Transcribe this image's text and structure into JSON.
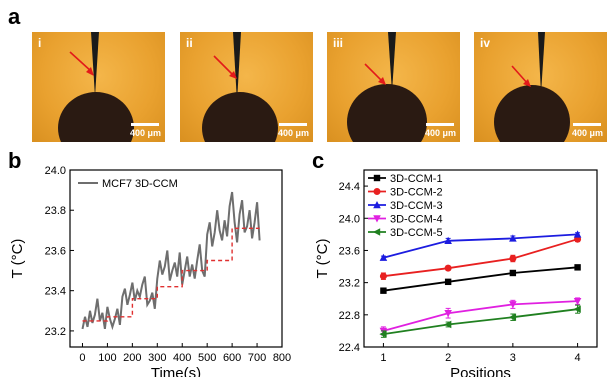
{
  "panel_a": {
    "letter": "a",
    "images": [
      {
        "label": "i",
        "scale": "400 μm"
      },
      {
        "label": "ii",
        "scale": "400 μm"
      },
      {
        "label": "iii",
        "scale": "400 μm"
      },
      {
        "label": "iv",
        "scale": "400 μm"
      }
    ]
  },
  "panel_b": {
    "letter": "b",
    "legend": "MCF7 3D-CCM",
    "xlabel": "Time(s)",
    "ylabel": "T (°C)",
    "xticks": [
      "0",
      "100",
      "200",
      "300",
      "400",
      "500",
      "600",
      "700",
      "800"
    ],
    "yticks": [
      "23.2",
      "23.4",
      "23.6",
      "23.8",
      "24.0"
    ]
  },
  "panel_c": {
    "letter": "c",
    "xlabel": "Positions",
    "ylabel": "T (°C)",
    "xticks": [
      "1",
      "2",
      "3",
      "4"
    ],
    "yticks": [
      "22.4",
      "22.8",
      "23.2",
      "23.6",
      "24.0",
      "24.4"
    ]
  },
  "chart_data": [
    {
      "type": "line",
      "series": [
        {
          "name": "MCF7 3D-CCM",
          "color": "#6e6e6e",
          "x": [
            0,
            10,
            20,
            30,
            40,
            50,
            60,
            70,
            80,
            90,
            100,
            110,
            120,
            130,
            140,
            150,
            160,
            170,
            180,
            190,
            200,
            210,
            220,
            230,
            240,
            250,
            260,
            270,
            280,
            290,
            300,
            310,
            320,
            330,
            340,
            350,
            360,
            370,
            380,
            390,
            400,
            410,
            420,
            430,
            440,
            450,
            460,
            470,
            480,
            490,
            500,
            510,
            520,
            530,
            540,
            550,
            560,
            570,
            580,
            590,
            600,
            610,
            620,
            630,
            640,
            650,
            660,
            670,
            680,
            690,
            700,
            710
          ],
          "y": [
            23.21,
            23.27,
            23.22,
            23.3,
            23.24,
            23.28,
            23.36,
            23.25,
            23.29,
            23.21,
            23.32,
            23.26,
            23.22,
            23.26,
            23.31,
            23.23,
            23.37,
            23.41,
            23.33,
            23.38,
            23.44,
            23.35,
            23.4,
            23.37,
            23.43,
            23.47,
            23.33,
            23.35,
            23.39,
            23.31,
            23.46,
            23.55,
            23.48,
            23.52,
            23.6,
            23.45,
            23.5,
            23.54,
            23.47,
            23.59,
            23.43,
            23.5,
            23.57,
            23.47,
            23.53,
            23.46,
            23.55,
            23.63,
            23.5,
            23.47,
            23.68,
            23.74,
            23.62,
            23.69,
            23.8,
            23.7,
            23.65,
            23.75,
            23.67,
            23.82,
            23.89,
            23.74,
            23.64,
            23.78,
            23.85,
            23.69,
            23.72,
            23.8,
            23.66,
            23.74,
            23.84,
            23.65
          ]
        },
        {
          "name": "",
          "color": "#e03030",
          "dashed": true,
          "x": [
            0,
            100,
            100,
            200,
            200,
            300,
            300,
            400,
            400,
            500,
            500,
            600,
            600,
            710
          ],
          "y": [
            23.25,
            23.25,
            23.27,
            23.27,
            23.36,
            23.36,
            23.42,
            23.42,
            23.5,
            23.5,
            23.55,
            23.55,
            23.71,
            23.71
          ]
        }
      ],
      "xlabel": "Time(s)",
      "ylabel": "T (°C)",
      "xlim": [
        -50,
        800
      ],
      "ylim": [
        23.12,
        24.0
      ]
    },
    {
      "type": "line",
      "categories": [
        1,
        2,
        3,
        4
      ],
      "series": [
        {
          "name": "3D-CCM-1",
          "color": "#000000",
          "marker": "square",
          "values": [
            23.1,
            23.21,
            23.32,
            23.39
          ],
          "errors": [
            0.01,
            0.01,
            0.01,
            0.01
          ]
        },
        {
          "name": "3D-CCM-2",
          "color": "#e82020",
          "marker": "circle",
          "values": [
            23.28,
            23.38,
            23.5,
            23.74
          ],
          "errors": [
            0.04,
            0.02,
            0.04,
            0.03
          ]
        },
        {
          "name": "3D-CCM-3",
          "color": "#1c1ce0",
          "marker": "triangle",
          "values": [
            23.51,
            23.72,
            23.75,
            23.8
          ],
          "errors": [
            0.02,
            0.03,
            0.03,
            0.02
          ]
        },
        {
          "name": "3D-CCM-4",
          "color": "#e020e0",
          "marker": "triangle-down",
          "values": [
            22.6,
            22.82,
            22.93,
            22.97
          ],
          "errors": [
            0.05,
            0.06,
            0.05,
            0.04
          ]
        },
        {
          "name": "3D-CCM-5",
          "color": "#208020",
          "marker": "triangle-left",
          "values": [
            22.56,
            22.68,
            22.77,
            22.87
          ],
          "errors": [
            0.04,
            0.03,
            0.04,
            0.05
          ]
        }
      ],
      "xlabel": "Positions",
      "ylabel": "T (°C)",
      "xlim": [
        0.7,
        4.3
      ],
      "ylim": [
        22.4,
        24.6
      ],
      "legend": "top-left"
    }
  ]
}
